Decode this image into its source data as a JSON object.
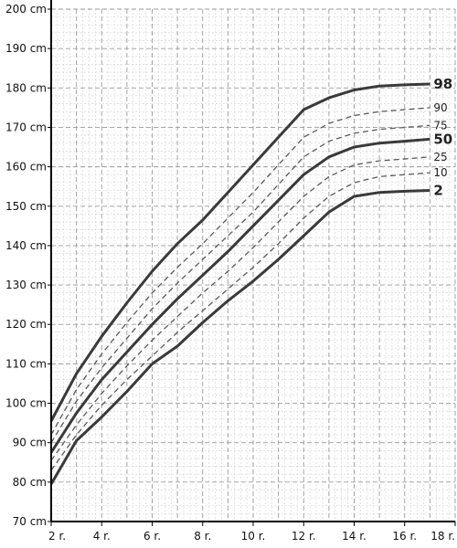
{
  "chart_data": {
    "type": "line",
    "title": "",
    "xlabel": "",
    "ylabel": "",
    "xlim": [
      2,
      18
    ],
    "ylim": [
      70,
      200
    ],
    "grid": true,
    "x_ticks": [
      {
        "value": 2,
        "label": "2 r."
      },
      {
        "value": 4,
        "label": "4 r."
      },
      {
        "value": 6,
        "label": "6 r."
      },
      {
        "value": 8,
        "label": "8 r."
      },
      {
        "value": 10,
        "label": "10 r."
      },
      {
        "value": 12,
        "label": "12 r."
      },
      {
        "value": 14,
        "label": "14 r."
      },
      {
        "value": 16,
        "label": "16 r."
      },
      {
        "value": 18,
        "label": "18 r."
      }
    ],
    "y_ticks": [
      {
        "value": 70,
        "label": "70 cm"
      },
      {
        "value": 80,
        "label": "80 cm"
      },
      {
        "value": 90,
        "label": "90 cm"
      },
      {
        "value": 100,
        "label": "100 cm"
      },
      {
        "value": 110,
        "label": "110 cm"
      },
      {
        "value": 120,
        "label": "120 cm"
      },
      {
        "value": 130,
        "label": "130 cm"
      },
      {
        "value": 140,
        "label": "140 cm"
      },
      {
        "value": 150,
        "label": "150 cm"
      },
      {
        "value": 160,
        "label": "160 cm"
      },
      {
        "value": 170,
        "label": "170 cm"
      },
      {
        "value": 180,
        "label": "180 cm"
      },
      {
        "value": 190,
        "label": "190 cm"
      },
      {
        "value": 200,
        "label": "200 cm"
      }
    ],
    "x": [
      2,
      3,
      4,
      5,
      6,
      7,
      8,
      9,
      10,
      11,
      12,
      13,
      14,
      15,
      16,
      17
    ],
    "series": [
      {
        "name": "98",
        "style": "solid",
        "values": [
          95.5,
          107.5,
          117,
          125.5,
          133.5,
          140.5,
          146.5,
          153.5,
          160.5,
          167.5,
          174.5,
          177.5,
          179.5,
          180.5,
          180.8,
          181
        ]
      },
      {
        "name": "90",
        "style": "dashed",
        "values": [
          92,
          103.5,
          112.5,
          120.5,
          128,
          134.5,
          140.5,
          147,
          153.5,
          160.5,
          167.5,
          171,
          173,
          174,
          174.5,
          175
        ]
      },
      {
        "name": "75",
        "style": "dashed",
        "values": [
          90,
          100.5,
          109,
          116.5,
          124,
          130.5,
          136.5,
          142.5,
          148.5,
          155.5,
          162.5,
          166.5,
          168.5,
          169.5,
          170,
          170.5
        ]
      },
      {
        "name": "50",
        "style": "solid",
        "values": [
          87.5,
          97.5,
          106,
          113,
          120,
          126.5,
          132.5,
          138.5,
          145,
          151.5,
          158,
          162.5,
          165,
          166,
          166.5,
          167
        ]
      },
      {
        "name": "25",
        "style": "dashed",
        "values": [
          85.5,
          94.5,
          102.5,
          109.5,
          116,
          122,
          128,
          133.5,
          139.5,
          146,
          152.5,
          157.5,
          160.5,
          161.5,
          162,
          162.5
        ]
      },
      {
        "name": "10",
        "style": "dashed",
        "values": [
          83,
          92,
          99.5,
          106,
          112,
          118,
          123.5,
          129,
          134.5,
          140.5,
          147,
          152.5,
          156,
          157.5,
          158,
          158.5
        ]
      },
      {
        "name": "2",
        "style": "solid",
        "values": [
          79.5,
          90.5,
          96.5,
          103,
          110,
          114.5,
          120.5,
          126,
          131,
          136.5,
          142.5,
          148.5,
          152.5,
          153.5,
          153.8,
          154
        ]
      }
    ],
    "colors": {
      "grid_major": "#9a9a9a",
      "grid_minor": "#d0d0d0",
      "solid_line": "#3a3a3a",
      "dashed_line": "#5a5a5a",
      "axis": "#000000"
    }
  }
}
